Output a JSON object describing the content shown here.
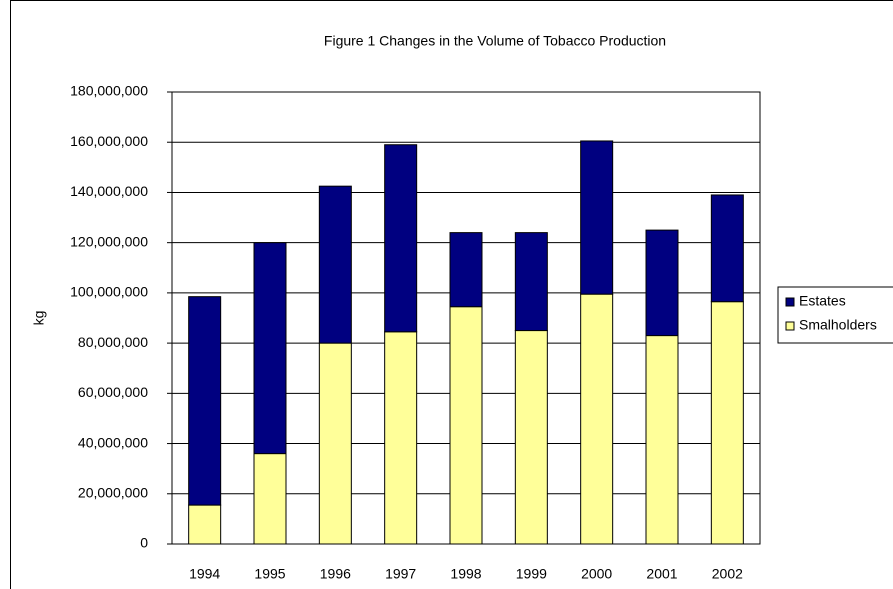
{
  "chart_data": {
    "type": "stacked_bar",
    "title": "Figure 1  Changes in the Volume of Tobacco Production",
    "y_label": "kg",
    "categories": [
      "1994",
      "1995",
      "1996",
      "1997",
      "1998",
      "1999",
      "2000",
      "2001",
      "2002"
    ],
    "series": [
      {
        "name": "Estates",
        "color": "#000080",
        "values": [
          83000000,
          84000000,
          62500000,
          74500000,
          29500000,
          39000000,
          61000000,
          42000000,
          42500000
        ]
      },
      {
        "name": "Smalholders",
        "color": "#ffff99",
        "values": [
          15500000,
          36000000,
          80000000,
          84500000,
          94500000,
          85000000,
          99500000,
          83000000,
          96500000
        ]
      }
    ],
    "ylim": [
      0,
      180000000
    ],
    "yticks": [
      0,
      {
        "value": 20000000,
        "label": "20,000,000"
      },
      {
        "value": 40000000,
        "label": "40,000,000"
      },
      {
        "value": 60000000,
        "label": "60,000,000"
      },
      {
        "value": 80000000,
        "label": "80,000,000"
      },
      {
        "value": 100000000,
        "label": "100,000,000"
      },
      {
        "value": 120000000,
        "label": "120,000,000"
      },
      {
        "value": 140000000,
        "label": "140,000,000"
      },
      {
        "value": 160000000,
        "label": "160,000,000"
      },
      {
        "value": 180000000,
        "label": "180,000,000"
      }
    ],
    "grid": true,
    "legend": "right"
  }
}
